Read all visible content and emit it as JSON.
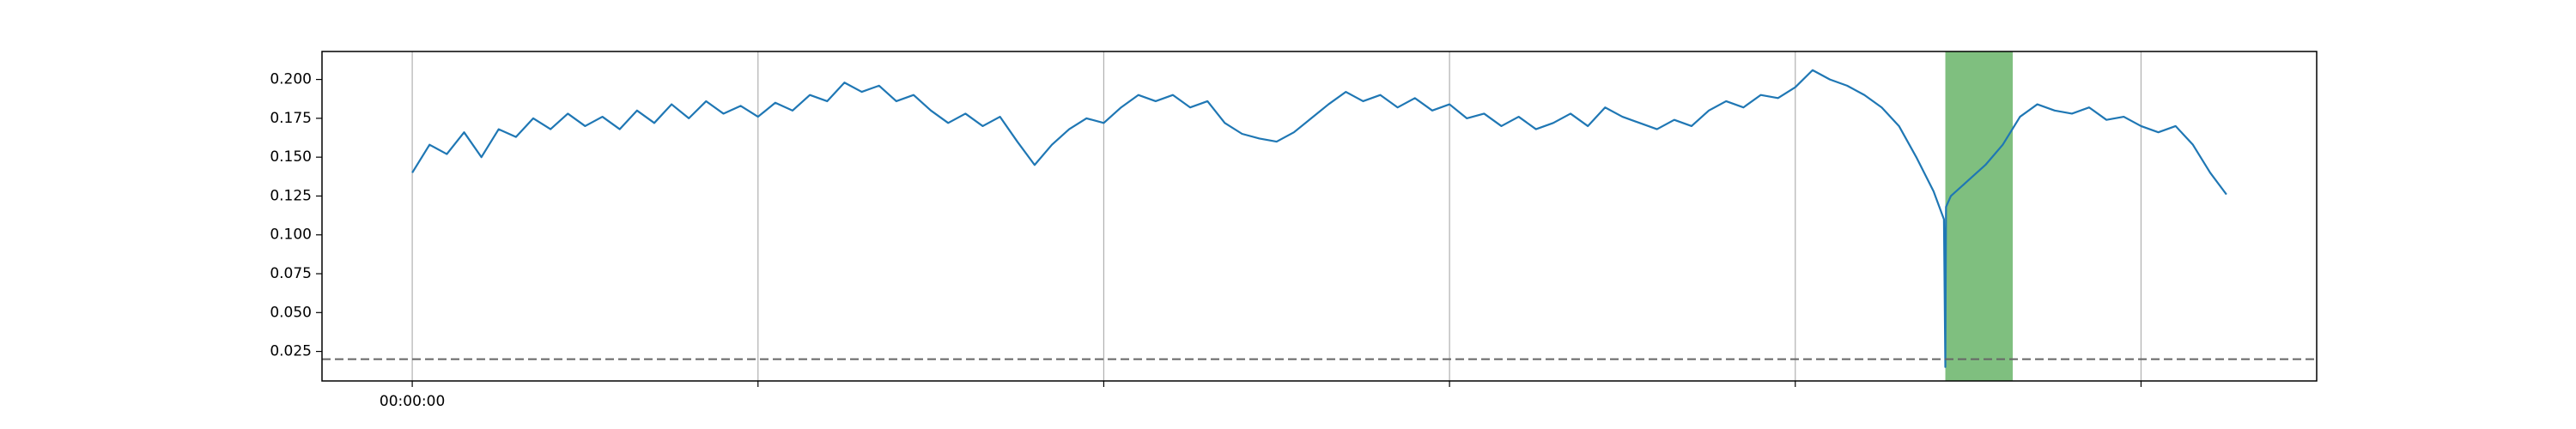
{
  "chart_data": {
    "type": "line",
    "x": [
      0,
      0.05,
      0.1,
      0.15,
      0.2,
      0.25,
      0.3,
      0.35,
      0.4,
      0.45,
      0.5,
      0.55,
      0.6,
      0.65,
      0.7,
      0.75,
      0.8,
      0.85,
      0.9,
      0.95,
      1.0,
      1.05,
      1.1,
      1.15,
      1.2,
      1.25,
      1.3,
      1.35,
      1.4,
      1.45,
      1.5,
      1.55,
      1.6,
      1.65,
      1.7,
      1.75,
      1.8,
      1.85,
      1.9,
      1.95,
      2.0,
      2.05,
      2.1,
      2.15,
      2.2,
      2.25,
      2.3,
      2.35,
      2.4,
      2.45,
      2.5,
      2.55,
      2.6,
      2.65,
      2.7,
      2.75,
      2.8,
      2.85,
      2.9,
      2.95,
      3.0,
      3.05,
      3.1,
      3.15,
      3.2,
      3.25,
      3.3,
      3.35,
      3.4,
      3.45,
      3.5,
      3.55,
      3.6,
      3.65,
      3.7,
      3.75,
      3.8,
      3.85,
      3.9,
      3.95,
      4.0,
      4.05,
      4.1,
      4.15,
      4.2,
      4.25,
      4.3,
      4.35,
      4.4,
      4.43,
      4.434,
      4.436,
      4.45,
      4.5,
      4.55,
      4.6,
      4.65,
      4.7,
      4.75,
      4.8,
      4.85,
      4.9,
      4.95,
      5.0,
      5.05,
      5.1,
      5.15,
      5.2,
      5.247
    ],
    "series": [
      {
        "color": "#1f77b4",
        "values": [
          0.14,
          0.158,
          0.152,
          0.166,
          0.15,
          0.168,
          0.163,
          0.175,
          0.168,
          0.178,
          0.17,
          0.176,
          0.168,
          0.18,
          0.172,
          0.184,
          0.175,
          0.186,
          0.178,
          0.183,
          0.176,
          0.185,
          0.18,
          0.19,
          0.186,
          0.198,
          0.192,
          0.196,
          0.186,
          0.19,
          0.18,
          0.172,
          0.178,
          0.17,
          0.176,
          0.16,
          0.145,
          0.158,
          0.168,
          0.175,
          0.172,
          0.182,
          0.19,
          0.186,
          0.19,
          0.182,
          0.186,
          0.172,
          0.165,
          0.162,
          0.16,
          0.166,
          0.175,
          0.184,
          0.192,
          0.186,
          0.19,
          0.182,
          0.188,
          0.18,
          0.184,
          0.175,
          0.178,
          0.17,
          0.176,
          0.168,
          0.172,
          0.178,
          0.17,
          0.182,
          0.176,
          0.172,
          0.168,
          0.174,
          0.17,
          0.18,
          0.186,
          0.182,
          0.19,
          0.188,
          0.195,
          0.206,
          0.2,
          0.196,
          0.19,
          0.182,
          0.17,
          0.15,
          0.128,
          0.11,
          0.015,
          0.118,
          0.125,
          0.135,
          0.145,
          0.158,
          0.176,
          0.184,
          0.18,
          0.178,
          0.182,
          0.174,
          0.176,
          0.17,
          0.166,
          0.17,
          0.158,
          0.14,
          0.126
        ]
      }
    ],
    "xlim": [
      -0.261,
      5.508
    ],
    "xticks": [
      {
        "value": 0,
        "label": "00:00:00"
      },
      {
        "value": 1,
        "label": null
      },
      {
        "value": 2,
        "label": null
      },
      {
        "value": 3,
        "label": null
      },
      {
        "value": 4,
        "label": null
      },
      {
        "value": 5,
        "label": null
      }
    ],
    "ylim": [
      0.006,
      0.218
    ],
    "yticks": [
      0.025,
      {
        "value": 0.05,
        "label": "0.050"
      },
      0.075,
      {
        "value": 0.1,
        "label": "0.100"
      },
      0.125,
      {
        "value": 0.15,
        "label": "0.150"
      },
      0.175,
      {
        "value": 0.2,
        "label": "0.200"
      }
    ],
    "x_grid": true,
    "hline": 0.02,
    "hline_color": "#666666",
    "span": [
      4.434,
      4.629
    ],
    "span_color": "#7fbf7f"
  }
}
